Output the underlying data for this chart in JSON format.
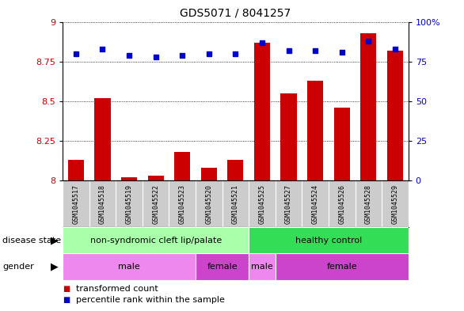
{
  "title": "GDS5071 / 8041257",
  "samples": [
    "GSM1045517",
    "GSM1045518",
    "GSM1045519",
    "GSM1045522",
    "GSM1045523",
    "GSM1045520",
    "GSM1045521",
    "GSM1045525",
    "GSM1045527",
    "GSM1045524",
    "GSM1045526",
    "GSM1045528",
    "GSM1045529"
  ],
  "transformed_count": [
    8.13,
    8.52,
    8.02,
    8.03,
    8.18,
    8.08,
    8.13,
    8.87,
    8.55,
    8.63,
    8.46,
    8.93,
    8.82
  ],
  "percentile_rank": [
    80,
    83,
    79,
    78,
    79,
    80,
    80,
    87,
    82,
    82,
    81,
    88,
    83
  ],
  "ylim_left": [
    8.0,
    9.0
  ],
  "ylim_right": [
    0,
    100
  ],
  "yticks_left": [
    8.0,
    8.25,
    8.5,
    8.75,
    9.0
  ],
  "yticks_left_labels": [
    "8",
    "8.25",
    "8.5",
    "8.75",
    "9"
  ],
  "yticks_right": [
    0,
    25,
    50,
    75,
    100
  ],
  "yticks_right_labels": [
    "0",
    "25",
    "50",
    "75",
    "100%"
  ],
  "bar_color": "#cc0000",
  "dot_color": "#0000cc",
  "disease_state_groups": [
    {
      "label": "non-syndromic cleft lip/palate",
      "start": 0,
      "end": 7,
      "color": "#aaffaa"
    },
    {
      "label": "healthy control",
      "start": 7,
      "end": 13,
      "color": "#33dd55"
    }
  ],
  "gender_groups": [
    {
      "label": "male",
      "start": 0,
      "end": 5,
      "color": "#ee88ee"
    },
    {
      "label": "female",
      "start": 5,
      "end": 7,
      "color": "#cc44cc"
    },
    {
      "label": "male",
      "start": 7,
      "end": 8,
      "color": "#ee88ee"
    },
    {
      "label": "female",
      "start": 8,
      "end": 13,
      "color": "#cc44cc"
    }
  ],
  "left_label_color": "#cc0000",
  "right_label_color": "#0000cc",
  "title_fontsize": 10,
  "legend_fontsize": 8,
  "sample_fontsize": 6,
  "annot_fontsize": 8,
  "row_label_fontsize": 8
}
